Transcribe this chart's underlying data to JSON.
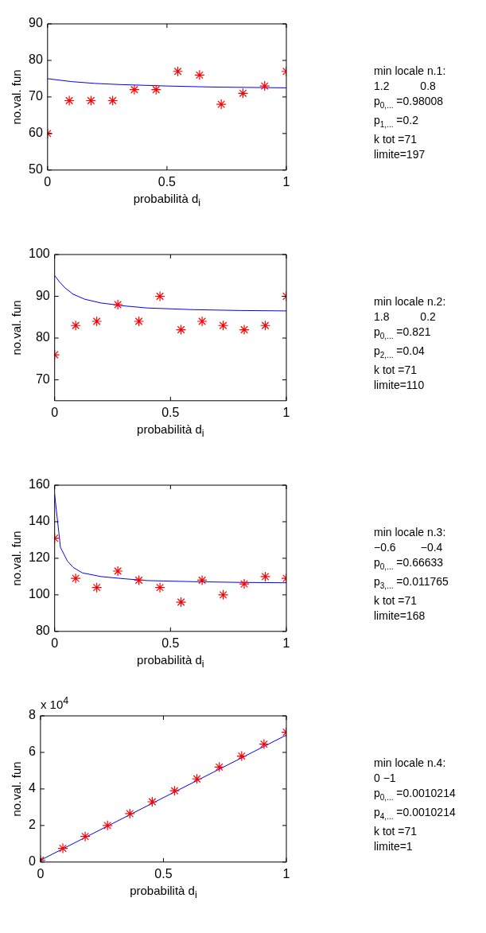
{
  "chart_data": [
    {
      "type": "scatter",
      "xlabel": "probabilità d$_{i}$",
      "ylabel": "no.val. fun",
      "xlim": [
        0,
        1
      ],
      "xticks": [
        0,
        0.5,
        1
      ],
      "ylim": [
        50,
        90
      ],
      "yticks": [
        50,
        60,
        70,
        80,
        90
      ],
      "grid": false,
      "legend": false,
      "series": [
        {
          "type": "scatter",
          "color": "#ff0000",
          "marker": "cross",
          "x": [
            0,
            0.0909,
            0.1818,
            0.2727,
            0.3636,
            0.4545,
            0.5455,
            0.6364,
            0.7273,
            0.8182,
            0.9091,
            1
          ],
          "values": [
            60,
            69,
            69,
            69,
            72,
            72,
            77,
            76,
            68,
            71,
            73,
            77
          ]
        },
        {
          "type": "line",
          "color": "#0000ff",
          "marker": "none",
          "x": [
            0,
            0.1,
            0.2,
            0.3,
            0.5,
            0.7,
            1
          ],
          "values": [
            75,
            74.2,
            73.7,
            73.4,
            73,
            72.7,
            72.5
          ]
        }
      ]
    },
    {
      "type": "other",
      "annotations": [
        "min locale n.1:",
        "1.2          0.8",
        "p$_{0,...}$ =0.98008",
        "p$_{1,...}$ =0.2",
        "k tot =71",
        "limite=197"
      ]
    },
    {
      "type": "scatter",
      "xlabel": "probabilità d$_{i}$",
      "ylabel": "no.val. fun",
      "xlim": [
        0,
        1
      ],
      "xticks": [
        0,
        0.5,
        1
      ],
      "ylim": [
        65,
        100
      ],
      "yticks": [
        70,
        80,
        90,
        100
      ],
      "grid": false,
      "legend": false,
      "series": [
        {
          "type": "scatter",
          "color": "#ff0000",
          "marker": "cross",
          "x": [
            0,
            0.0909,
            0.1818,
            0.2727,
            0.3636,
            0.4545,
            0.5455,
            0.6364,
            0.7273,
            0.8182,
            0.9091,
            1
          ],
          "values": [
            76,
            83,
            84,
            88,
            84,
            90,
            82,
            84,
            83,
            82,
            83,
            90
          ]
        },
        {
          "type": "line",
          "color": "#0000ff",
          "marker": "none",
          "x": [
            0,
            0.02,
            0.045,
            0.08,
            0.13,
            0.2,
            0.3,
            0.4,
            0.6,
            0.8,
            1
          ],
          "values": [
            95,
            93.5,
            92,
            90.5,
            89.3,
            88.4,
            87.7,
            87.2,
            86.8,
            86.6,
            86.5
          ]
        }
      ]
    },
    {
      "type": "other",
      "annotations": [
        "min locale n.2:",
        "1.8          0.2",
        "p$_{0,...}$ =0.821",
        "p$_{2,...}$ =0.04",
        "k tot =71",
        "limite=110"
      ]
    },
    {
      "type": "scatter",
      "xlabel": "probabilità d$_{i}$",
      "ylabel": "no.val. fun",
      "xlim": [
        0,
        1
      ],
      "xticks": [
        0,
        0.5,
        1
      ],
      "ylim": [
        80,
        160
      ],
      "yticks": [
        80,
        100,
        120,
        140,
        160
      ],
      "grid": false,
      "legend": false,
      "series": [
        {
          "type": "scatter",
          "color": "#ff0000",
          "marker": "cross",
          "x": [
            0,
            0.0909,
            0.1818,
            0.2727,
            0.3636,
            0.4545,
            0.5455,
            0.6364,
            0.7273,
            0.8182,
            0.9091,
            1
          ],
          "values": [
            131,
            109,
            104,
            113,
            108,
            104,
            96,
            108,
            100,
            106,
            110,
            109
          ]
        },
        {
          "type": "line",
          "color": "#0000ff",
          "marker": "none",
          "x": [
            0,
            0.025,
            0.055,
            0.08,
            0.12,
            0.2,
            0.3,
            0.4,
            0.6,
            0.8,
            1
          ],
          "values": [
            155,
            126,
            118.5,
            115,
            112,
            110,
            108.8,
            107.8,
            107.2,
            106.8,
            106.6
          ]
        }
      ]
    },
    {
      "type": "other",
      "annotations": [
        "min locale n.3:",
        "−0.6        −0.4",
        "p$_{0,...}$ =0.66633",
        "p$_{3,...}$ =0.011765",
        "k tot =71",
        "limite=168"
      ]
    },
    {
      "type": "scatter",
      "xlabel": "probabilità d$_{i}$",
      "ylabel": "no.val. fun",
      "xlim": [
        0,
        1
      ],
      "xticks": [
        0,
        0.5,
        1
      ],
      "ylim": [
        0,
        8
      ],
      "yticks": [
        0,
        2,
        4,
        6,
        8
      ],
      "grid": false,
      "legend": false,
      "series": [
        {
          "type": "scatter",
          "color": "#ff0000",
          "marker": "cross",
          "x": [
            0,
            0.0909,
            0.1818,
            0.2727,
            0.3636,
            0.4545,
            0.5455,
            0.6364,
            0.7273,
            0.8182,
            0.9091,
            1
          ],
          "values": [
            0.1,
            0.75,
            1.4,
            2.0,
            2.65,
            3.3,
            3.9,
            4.55,
            5.2,
            5.8,
            6.45,
            7.1
          ]
        },
        {
          "type": "line",
          "color": "#0000ff",
          "marker": "none",
          "x": [
            0,
            1
          ],
          "values": [
            0.1,
            6.95
          ]
        }
      ],
      "annotations": [
        "x 10$^{4}$"
      ]
    },
    {
      "type": "other",
      "annotations": [
        "min locale n.4:",
        "0 −1",
        "p$_{0,...}$ =0.0010214",
        "p$_{4,...}$ =0.0010214",
        "k tot =71",
        "limite=1"
      ]
    }
  ]
}
